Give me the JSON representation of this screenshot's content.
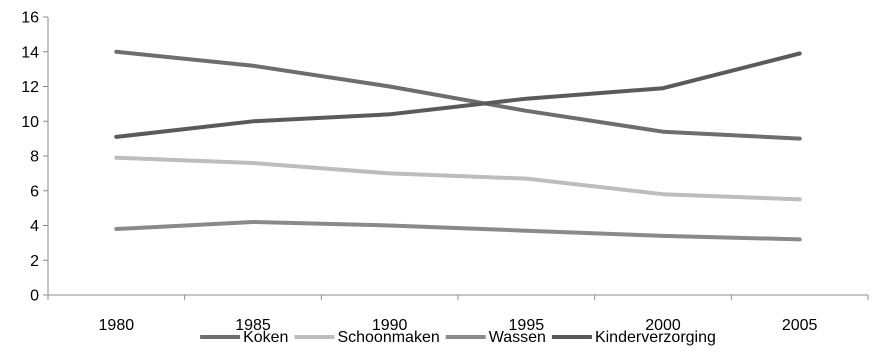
{
  "chart_data": {
    "type": "line",
    "title": "",
    "xlabel": "",
    "ylabel": "",
    "categories": [
      "1980",
      "1985",
      "1990",
      "1995",
      "2000",
      "2005"
    ],
    "ylim": [
      0,
      16
    ],
    "yticks": [
      "0",
      "2",
      "4",
      "6",
      "8",
      "10",
      "12",
      "14",
      "16"
    ],
    "grid": false,
    "legend_position": "bottom",
    "series": [
      {
        "name": "Koken",
        "color": "#6e6e6e",
        "values": [
          14.0,
          13.2,
          12.0,
          10.6,
          9.4,
          9.0
        ]
      },
      {
        "name": "Schoonmaken",
        "color": "#bdbdbd",
        "values": [
          7.9,
          7.6,
          7.0,
          6.7,
          5.8,
          5.5
        ]
      },
      {
        "name": "Wassen",
        "color": "#8a8a8a",
        "values": [
          3.8,
          4.2,
          4.0,
          3.7,
          3.4,
          3.2
        ]
      },
      {
        "name": "Kinderverzorging",
        "color": "#5a5a5a",
        "values": [
          9.1,
          10.0,
          10.4,
          11.3,
          11.9,
          13.9
        ]
      }
    ]
  }
}
